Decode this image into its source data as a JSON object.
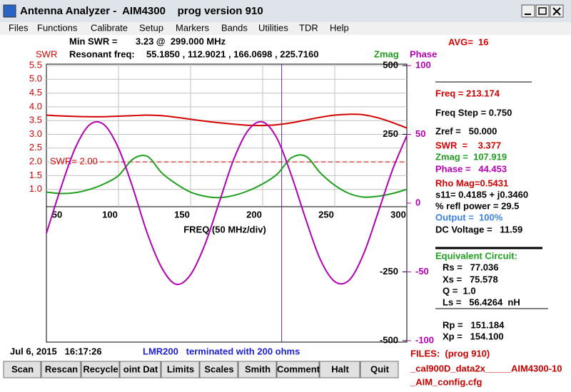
{
  "window": {
    "title": "Antenna Analyzer -  AIM4300    prog version 910"
  },
  "menu": [
    "Files",
    "Functions",
    "Calibrate",
    "Setup",
    "Markers",
    "Bands",
    "Utilities",
    "TDR",
    "Help"
  ],
  "header": {
    "min_swr_label": "Min SWR =",
    "min_swr_value": "3.23 @  299.000 MHz",
    "resonant_label": "Resonant freq:",
    "resonant_values": "55.1850 , 112.9021 , 166.0698 , 225.7160",
    "avg": "AVG=  16"
  },
  "chart_data": {
    "type": "line",
    "x_label": "FREQ (50 MHz/div)",
    "x": [
      50,
      60,
      70,
      80,
      90,
      100,
      110,
      120,
      130,
      140,
      150,
      160,
      170,
      180,
      190,
      200,
      210,
      220,
      230,
      240,
      250,
      260,
      270,
      280,
      290,
      300
    ],
    "xlim": [
      50,
      300
    ],
    "xticks": [
      50,
      100,
      150,
      200,
      250,
      300
    ],
    "ylim": [
      0.5,
      5.5
    ],
    "yticks": [
      {
        "value": 1,
        "label": "1.0"
      },
      {
        "value": 1.5,
        "label": "1.5"
      },
      {
        "value": 2,
        "label": "2.0"
      },
      {
        "value": 2.5,
        "label": "2.5"
      },
      {
        "value": 3,
        "label": "3.0"
      },
      {
        "value": 3.5,
        "label": "3.5"
      },
      {
        "value": 4,
        "label": "4.0"
      },
      {
        "value": 4.5,
        "label": "4.5"
      },
      {
        "value": 5,
        "label": "5.0"
      },
      {
        "value": 5.5,
        "label": "5.5"
      }
    ],
    "y2lim": [
      -500,
      500
    ],
    "y2ticks": [
      -500,
      -250,
      250,
      500
    ],
    "y3lim": [
      -100,
      100
    ],
    "y3ticks": [
      -100,
      -50,
      0,
      50,
      100
    ],
    "grid": true,
    "reference_line": {
      "value": 2,
      "label": "SWR= 2.00"
    },
    "marker_x": 213.174,
    "series": [
      {
        "name": "SWR",
        "color": "#d40000",
        "axis": "y",
        "values": [
          3.7,
          3.67,
          3.65,
          3.64,
          3.64,
          3.66,
          3.68,
          3.7,
          3.68,
          3.62,
          3.55,
          3.48,
          3.42,
          3.37,
          3.33,
          3.32,
          3.35,
          3.42,
          3.52,
          3.62,
          3.7,
          3.73,
          3.71,
          3.6,
          3.43,
          3.23
        ]
      },
      {
        "name": "Zmag",
        "color": "#1ea01e",
        "axis": "y2",
        "values": [
          40,
          35,
          38,
          50,
          70,
          100,
          160,
          170,
          110,
          70,
          40,
          25,
          20,
          28,
          45,
          70,
          105,
          165,
          170,
          110,
          65,
          35,
          22,
          25,
          35,
          50
        ]
      },
      {
        "name": "Phase",
        "color": "#b400b4",
        "axis": "y3",
        "values": [
          -22,
          11,
          40,
          57,
          57,
          40,
          11,
          -22,
          -47,
          -59,
          -52,
          -30,
          1,
          32,
          53,
          59,
          47,
          20,
          -12,
          -41,
          -57,
          -56,
          -37,
          -7,
          24,
          49
        ]
      }
    ]
  },
  "panel": {
    "readings": [
      "Freq = 213.174",
      "Freq Step = 0.750",
      "Zref =   50.000",
      "SWR  =    3.377",
      "Zmag =  107.919",
      "Phase =   44.453",
      "Rho Mag=0.5431",
      "s11= 0.4185 + j0.3460",
      "% refl power = 29.5",
      "Output =  100%",
      "DC Voltage =   11.59"
    ],
    "equivalent_circuit": {
      "title": "Equivalent Circuit:",
      "items": [
        "Rs =   77.036",
        "Xs =   75.578",
        "Q =  1.0",
        "Ls =   56.4264  nH",
        "Rp =   151.184",
        "Xp =   154.100"
      ]
    }
  },
  "status": {
    "datetime": "Jul 6, 2015   16:17:26",
    "cable": "LMR200   terminated with 200 ohms"
  },
  "files": {
    "label": "FILES:  (prog 910)",
    "lines": [
      "_cal900D_data2x_____AIM4300-10",
      "_AIM_config.cfg"
    ]
  },
  "buttons": [
    "Scan",
    "Rescan",
    "Recycle",
    "oint Dat",
    "Limits",
    "Scales",
    "Smith",
    "Comment",
    "Halt",
    "Quit"
  ]
}
